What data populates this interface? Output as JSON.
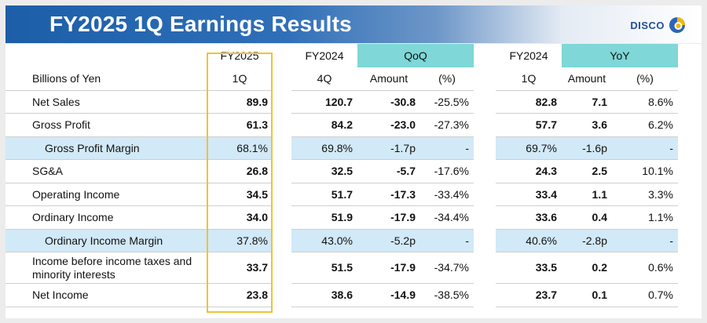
{
  "title": "FY2025 1Q Earnings Results",
  "brand": {
    "name": "DISCO",
    "color": "#1f4f95"
  },
  "unit_label": "Billions of Yen",
  "columns": {
    "current": {
      "line1": "FY2025",
      "line2": "1Q"
    },
    "prev_q": {
      "line1": "FY2024",
      "line2": "4Q"
    },
    "qoq": {
      "label": "QoQ",
      "amount": "Amount",
      "pct": "(%)"
    },
    "prev_y": {
      "line1": "FY2024",
      "line2": "1Q"
    },
    "yoy": {
      "label": "YoY",
      "amount": "Amount",
      "pct": "(%)"
    }
  },
  "rows": [
    {
      "label": "Net Sales",
      "cur": "89.9",
      "prevq": "120.7",
      "qoq_amt": "-30.8",
      "qoq_pct": "-25.5%",
      "prevy": "82.8",
      "yoy_amt": "7.1",
      "yoy_pct": "8.6%"
    },
    {
      "label": "Gross Profit",
      "cur": "61.3",
      "prevq": "84.2",
      "qoq_amt": "-23.0",
      "qoq_pct": "-27.3%",
      "prevy": "57.7",
      "yoy_amt": "3.6",
      "yoy_pct": "6.2%"
    },
    {
      "label": "Gross Profit Margin",
      "cur": "68.1%",
      "prevq": "69.8%",
      "qoq_amt": "-1.7p",
      "qoq_pct": "-",
      "prevy": "69.7%",
      "yoy_amt": "-1.6p",
      "yoy_pct": "-"
    },
    {
      "label": "SG&A",
      "cur": "26.8",
      "prevq": "32.5",
      "qoq_amt": "-5.7",
      "qoq_pct": "-17.6%",
      "prevy": "24.3",
      "yoy_amt": "2.5",
      "yoy_pct": "10.1%"
    },
    {
      "label": "Operating Income",
      "cur": "34.5",
      "prevq": "51.7",
      "qoq_amt": "-17.3",
      "qoq_pct": "-33.4%",
      "prevy": "33.4",
      "yoy_amt": "1.1",
      "yoy_pct": "3.3%"
    },
    {
      "label": "Ordinary Income",
      "cur": "34.0",
      "prevq": "51.9",
      "qoq_amt": "-17.9",
      "qoq_pct": "-34.4%",
      "prevy": "33.6",
      "yoy_amt": "0.4",
      "yoy_pct": "1.1%"
    },
    {
      "label": "Ordinary Income Margin",
      "cur": "37.8%",
      "prevq": "43.0%",
      "qoq_amt": "-5.2p",
      "qoq_pct": "-",
      "prevy": "40.6%",
      "yoy_amt": "-2.8p",
      "yoy_pct": "-"
    },
    {
      "label": "Income before income taxes and minority interests",
      "cur": "33.7",
      "prevq": "51.5",
      "qoq_amt": "-17.9",
      "qoq_pct": "-34.7%",
      "prevy": "33.5",
      "yoy_amt": "0.2",
      "yoy_pct": "0.6%"
    },
    {
      "label": "Net Income",
      "cur": "23.8",
      "prevq": "38.6",
      "qoq_amt": "-14.9",
      "qoq_pct": "-38.5%",
      "prevy": "23.7",
      "yoy_amt": "0.1",
      "yoy_pct": "0.7%"
    }
  ],
  "colors": {
    "header_teal": "#7fd7d7",
    "margin_row": "#d2e9f7",
    "highlight": "#f1c232",
    "banner": "#1d5ea9"
  }
}
